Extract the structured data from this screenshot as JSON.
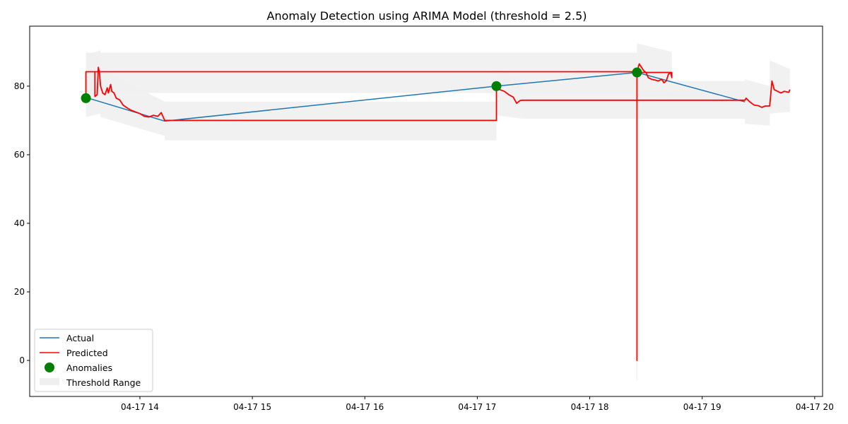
{
  "chart_data": {
    "type": "line",
    "title": "Anomaly Detection using ARIMA Model (threshold = 2.5)",
    "xlabel": "",
    "ylabel": "",
    "x_ticks": [
      "04-17 14",
      "04-17 15",
      "04-17 16",
      "04-17 17",
      "04-17 18",
      "04-17 19",
      "04-17 20"
    ],
    "x_tick_hours": [
      14,
      15,
      16,
      17,
      18,
      19,
      20
    ],
    "y_ticks": [
      0,
      20,
      40,
      60,
      80
    ],
    "xlim_hours": [
      13.02,
      20.07
    ],
    "ylim": [
      -10.5,
      97.5
    ],
    "legend_position": "lower left",
    "colors": {
      "actual": "#1f77b4",
      "predicted": "#ff0000",
      "anomalies": "#008000",
      "threshold": "#efefef"
    },
    "series": [
      {
        "name": "Actual",
        "type": "line",
        "points": [
          [
            13.52,
            76.7
          ],
          [
            14.22,
            69.8
          ],
          [
            17.17,
            80.0
          ],
          [
            18.42,
            84.0
          ],
          [
            19.38,
            75.4
          ]
        ]
      },
      {
        "name": "Predicted",
        "type": "line",
        "points": [
          [
            13.52,
            76.0
          ],
          [
            13.52,
            84.2
          ],
          [
            13.6,
            84.2
          ],
          [
            13.6,
            77.0
          ],
          [
            13.62,
            77.5
          ],
          [
            13.63,
            85.5
          ],
          [
            13.64,
            84.0
          ],
          [
            13.65,
            80.0
          ],
          [
            13.67,
            78.0
          ],
          [
            13.69,
            77.5
          ],
          [
            13.71,
            79.5
          ],
          [
            13.72,
            78.0
          ],
          [
            13.74,
            80.5
          ],
          [
            13.75,
            78.5
          ],
          [
            13.77,
            78.0
          ],
          [
            13.79,
            76.5
          ],
          [
            13.82,
            76.0
          ],
          [
            13.85,
            74.5
          ],
          [
            13.88,
            73.8
          ],
          [
            13.92,
            73.0
          ],
          [
            13.96,
            72.5
          ],
          [
            14.0,
            72.0
          ],
          [
            14.04,
            71.2
          ],
          [
            14.08,
            71.0
          ],
          [
            14.12,
            71.5
          ],
          [
            14.16,
            71.2
          ],
          [
            14.19,
            72.3
          ],
          [
            14.22,
            70.0
          ],
          [
            17.17,
            70.0
          ],
          [
            17.17,
            80.2
          ],
          [
            17.2,
            79.0
          ],
          [
            17.24,
            78.5
          ],
          [
            17.28,
            77.5
          ],
          [
            17.32,
            76.8
          ],
          [
            17.35,
            75.0
          ],
          [
            17.38,
            75.8
          ],
          [
            17.4,
            75.9
          ],
          [
            18.42,
            75.9
          ],
          [
            18.42,
            84.2
          ],
          [
            17.5,
            84.2
          ],
          [
            13.52,
            84.2
          ],
          [
            17.5,
            84.2
          ],
          [
            18.42,
            84.2
          ],
          [
            18.42,
            0.0
          ],
          [
            18.42,
            84.2
          ],
          [
            18.44,
            86.5
          ],
          [
            18.46,
            85.5
          ],
          [
            18.48,
            84.5
          ],
          [
            18.5,
            84.0
          ],
          [
            18.52,
            82.5
          ],
          [
            18.55,
            82.0
          ],
          [
            18.58,
            81.8
          ],
          [
            18.61,
            81.5
          ],
          [
            18.64,
            82.0
          ],
          [
            18.66,
            81.0
          ],
          [
            18.68,
            81.5
          ],
          [
            18.7,
            83.5
          ],
          [
            18.72,
            84.0
          ],
          [
            18.73,
            82.5
          ],
          [
            18.73,
            84.0
          ],
          [
            18.42,
            84.0
          ],
          [
            18.42,
            75.9
          ],
          [
            19.38,
            75.9
          ],
          [
            19.39,
            76.5
          ],
          [
            19.42,
            75.5
          ],
          [
            19.46,
            74.5
          ],
          [
            19.5,
            74.3
          ],
          [
            19.53,
            73.8
          ],
          [
            19.56,
            74.2
          ],
          [
            19.6,
            74.2
          ],
          [
            19.62,
            81.5
          ],
          [
            19.64,
            79.0
          ],
          [
            19.67,
            78.5
          ],
          [
            19.7,
            78.0
          ],
          [
            19.73,
            78.5
          ],
          [
            19.77,
            78.2
          ],
          [
            19.78,
            79.0
          ]
        ]
      },
      {
        "name": "Anomalies",
        "type": "scatter",
        "points": [
          [
            13.52,
            76.5
          ],
          [
            17.17,
            80.0
          ],
          [
            18.42,
            84.0
          ]
        ]
      },
      {
        "name": "Threshold Range",
        "type": "band",
        "bands": [
          {
            "x": [
              13.52,
              13.65
            ],
            "lower": [
              71.0,
              72.0
            ],
            "upper": [
              89.0,
              90.5
            ]
          },
          {
            "x": [
              13.52,
              17.17
            ],
            "lower": [
              78.0,
              78.0
            ],
            "upper": [
              89.8,
              89.8
            ]
          },
          {
            "x": [
              17.17,
              18.42
            ],
            "lower": [
              78.0,
              78.0
            ],
            "upper": [
              89.8,
              89.8
            ]
          },
          {
            "x": [
              13.65,
              14.22
            ],
            "lower": [
              71.0,
              65.5
            ],
            "upper": [
              85.0,
              75.5
            ]
          },
          {
            "x": [
              14.22,
              17.17
            ],
            "lower": [
              64.2,
              64.2
            ],
            "upper": [
              75.5,
              75.5
            ]
          },
          {
            "x": [
              17.17,
              17.4
            ],
            "lower": [
              71.5,
              70.5
            ],
            "upper": [
              85.5,
              81.5
            ]
          },
          {
            "x": [
              17.4,
              19.38
            ],
            "lower": [
              70.5,
              70.5
            ],
            "upper": [
              78.5,
              78.5
            ]
          },
          {
            "x": [
              18.42,
              18.73
            ],
            "lower": [
              77.0,
              75.5
            ],
            "upper": [
              92.5,
              90.0
            ]
          },
          {
            "x": [
              18.73,
              19.38
            ],
            "lower": [
              75.5,
              75.5
            ],
            "upper": [
              81.5,
              81.5
            ]
          },
          {
            "x": [
              19.38,
              19.6
            ],
            "lower": [
              69.0,
              68.5
            ],
            "upper": [
              82.0,
              80.0
            ]
          },
          {
            "x": [
              19.6,
              19.78
            ],
            "lower": [
              72.0,
              72.5
            ],
            "upper": [
              87.5,
              85.0
            ]
          },
          {
            "x": [
              18.415,
              18.425
            ],
            "lower": [
              -5.8,
              -5.8
            ],
            "upper": [
              5.8,
              5.8
            ]
          }
        ]
      }
    ]
  }
}
